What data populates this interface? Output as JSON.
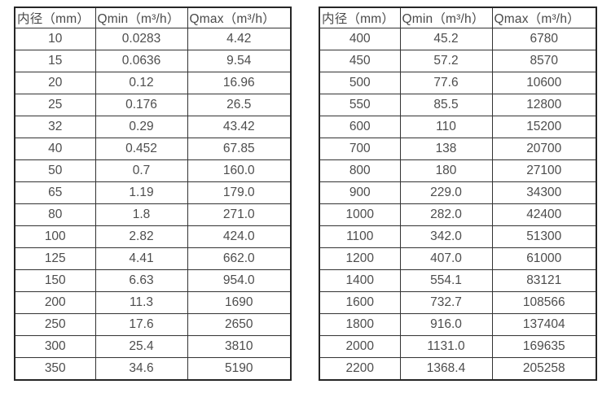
{
  "page": {
    "background_color": "#ffffff",
    "text_color": "#4d4d4d",
    "border_color": "#333333"
  },
  "chart_data": [
    {
      "type": "table",
      "title": "",
      "columns": [
        "内径（mm）",
        "Qmin（m³/h）",
        "Qmax（m³/h）"
      ],
      "rows": [
        [
          "10",
          "0.0283",
          "4.42"
        ],
        [
          "15",
          "0.0636",
          "9.54"
        ],
        [
          "20",
          "0.12",
          "16.96"
        ],
        [
          "25",
          "0.176",
          "26.5"
        ],
        [
          "32",
          "0.29",
          "43.42"
        ],
        [
          "40",
          "0.452",
          "67.85"
        ],
        [
          "50",
          "0.7",
          "160.0"
        ],
        [
          "65",
          "1.19",
          "179.0"
        ],
        [
          "80",
          "1.8",
          "271.0"
        ],
        [
          "100",
          "2.82",
          "424.0"
        ],
        [
          "125",
          "4.41",
          "662.0"
        ],
        [
          "150",
          "6.63",
          "954.0"
        ],
        [
          "200",
          "11.3",
          "1690"
        ],
        [
          "250",
          "17.6",
          "2650"
        ],
        [
          "300",
          "25.4",
          "3810"
        ],
        [
          "350",
          "34.6",
          "5190"
        ]
      ]
    },
    {
      "type": "table",
      "title": "",
      "columns": [
        "内径（mm）",
        "Qmin（m³/h）",
        "Qmax（m³/h）"
      ],
      "rows": [
        [
          "400",
          "45.2",
          "6780"
        ],
        [
          "450",
          "57.2",
          "8570"
        ],
        [
          "500",
          "77.6",
          "10600"
        ],
        [
          "550",
          "85.5",
          "12800"
        ],
        [
          "600",
          "110",
          "15200"
        ],
        [
          "700",
          "138",
          "20700"
        ],
        [
          "800",
          "180",
          "27100"
        ],
        [
          "900",
          "229.0",
          "34300"
        ],
        [
          "1000",
          "282.0",
          "42400"
        ],
        [
          "1100",
          "342.0",
          "51300"
        ],
        [
          "1200",
          "407.0",
          "61000"
        ],
        [
          "1400",
          "554.1",
          "83121"
        ],
        [
          "1600",
          "732.7",
          "108566"
        ],
        [
          "1800",
          "916.0",
          "137404"
        ],
        [
          "2000",
          "1131.0",
          "169635"
        ],
        [
          "2200",
          "1368.4",
          "205258"
        ]
      ]
    }
  ]
}
